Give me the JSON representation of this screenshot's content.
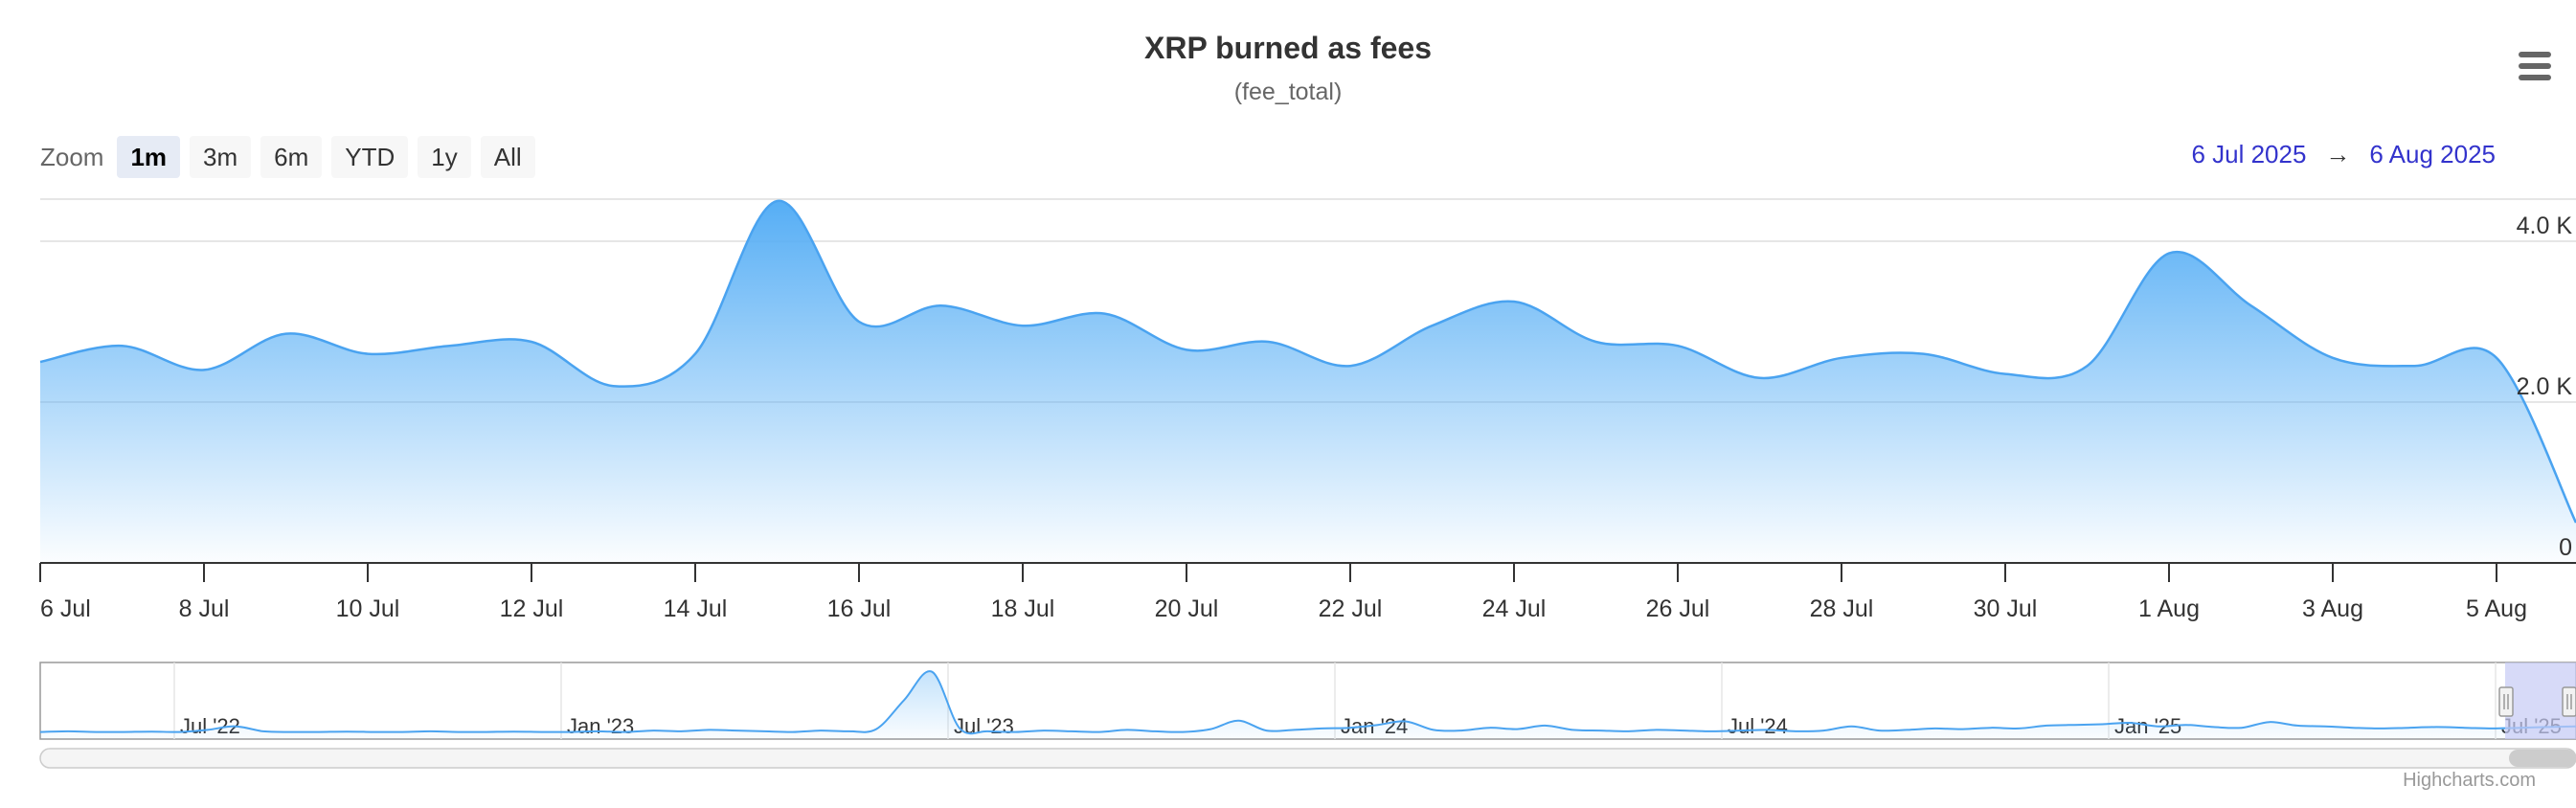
{
  "header": {
    "title": "XRP burned as fees",
    "subtitle": "(fee_total)"
  },
  "zoom": {
    "label": "Zoom",
    "buttons": [
      "1m",
      "3m",
      "6m",
      "YTD",
      "1y",
      "All"
    ],
    "selected": "1m"
  },
  "range": {
    "from": "6 Jul 2025",
    "arrow": "→",
    "to": "6 Aug 2025"
  },
  "menu_icon": "hamburger-menu-icon",
  "credits": "Highcharts.com",
  "colors": {
    "series": "#4aa3f0",
    "fill_top": "#56aef5",
    "grid": "#e6e6e6",
    "navigator_mask": "#c6cbf5"
  },
  "chart_data": {
    "type": "area",
    "title": "XRP burned as fees",
    "subtitle": "(fee_total)",
    "series": [
      {
        "x": [
          "2025-07-06",
          "2025-07-07",
          "2025-07-08",
          "2025-07-09",
          "2025-07-10",
          "2025-07-11",
          "2025-07-12",
          "2025-07-13",
          "2025-07-14",
          "2025-07-15",
          "2025-07-16",
          "2025-07-17",
          "2025-07-18",
          "2025-07-19",
          "2025-07-20",
          "2025-07-21",
          "2025-07-22",
          "2025-07-23",
          "2025-07-24",
          "2025-07-25",
          "2025-07-26",
          "2025-07-27",
          "2025-07-28",
          "2025-07-29",
          "2025-07-30",
          "2025-07-31",
          "2025-08-01",
          "2025-08-02",
          "2025-08-03",
          "2025-08-04",
          "2025-08-05",
          "2025-08-06"
        ],
        "values": [
          2500,
          2700,
          2400,
          2850,
          2600,
          2700,
          2750,
          2200,
          2600,
          4500,
          3000,
          3200,
          2950,
          3100,
          2650,
          2750,
          2450,
          2950,
          3250,
          2750,
          2700,
          2300,
          2550,
          2600,
          2350,
          2450,
          3850,
          3200,
          2550,
          2450,
          2550,
          500
        ]
      }
    ],
    "x_ticks": [
      "6 Jul",
      "8 Jul",
      "10 Jul",
      "12 Jul",
      "14 Jul",
      "16 Jul",
      "18 Jul",
      "20 Jul",
      "22 Jul",
      "24 Jul",
      "26 Jul",
      "28 Jul",
      "30 Jul",
      "1 Aug",
      "3 Aug",
      "5 Aug"
    ],
    "y_ticks": [
      "0",
      "2.0 K",
      "4.0 K"
    ],
    "ylim": [
      0,
      4500
    ],
    "grid": true,
    "legend": "none",
    "navigator": {
      "labels": [
        "Jul '22",
        "Jan '23",
        "Jul '23",
        "Jan '24",
        "Jul '24",
        "Jan '25",
        "Jul '25"
      ],
      "values": [
        1.0,
        1.1,
        1.0,
        1.0,
        1.05,
        1.0,
        1.3,
        1.8,
        1.1,
        1.0,
        1.0,
        1.05,
        1.0,
        1.0,
        1.1,
        1.0,
        1.0,
        1.05,
        1.0,
        1.0,
        1.1,
        1.0,
        1.2,
        1.1,
        1.3,
        1.2,
        1.1,
        1.0,
        1.2,
        1.1,
        1.4,
        5.5,
        9.5,
        1.5,
        1.1,
        1.0,
        1.2,
        1.1,
        1.0,
        1.3,
        1.1,
        1.0,
        1.4,
        2.6,
        1.2,
        1.3,
        1.5,
        1.6,
        2.0,
        2.5,
        1.3,
        1.2,
        1.6,
        1.4,
        1.9,
        1.3,
        1.2,
        1.1,
        1.3,
        1.2,
        1.1,
        1.2,
        1.3,
        1.1,
        1.2,
        1.8,
        1.2,
        1.3,
        1.5,
        1.4,
        1.6,
        1.5,
        1.9,
        2.0,
        2.1,
        2.3,
        1.8,
        2.0,
        1.7,
        1.6,
        2.4,
        1.9,
        1.8,
        1.6,
        1.5,
        1.6,
        1.7,
        1.6,
        1.5,
        1.6,
        1.7,
        1.8
      ]
    }
  }
}
